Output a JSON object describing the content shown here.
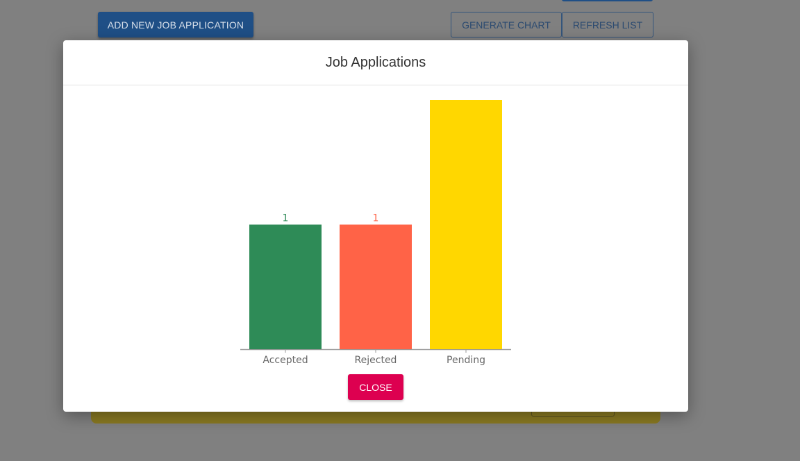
{
  "background": {
    "add_button_label": "ADD NEW JOB APPLICATION",
    "generate_chart_label": "GENERATE CHART",
    "refresh_list_label": "REFRESH LIST"
  },
  "modal": {
    "title": "Job Applications",
    "close_label": "CLOSE"
  },
  "colors": {
    "accepted": "#2e8b57",
    "rejected": "#ff6347",
    "pending": "#ffd700",
    "close_button": "#dd0050"
  },
  "chart_data": {
    "type": "bar",
    "title": "",
    "xlabel": "",
    "ylabel": "",
    "categories": [
      "Accepted",
      "Rejected",
      "Pending"
    ],
    "values": [
      1,
      1,
      2
    ],
    "data_labels": [
      "1",
      "1",
      ""
    ],
    "ylim": [
      0,
      2
    ],
    "grid": false,
    "legend": "none"
  }
}
